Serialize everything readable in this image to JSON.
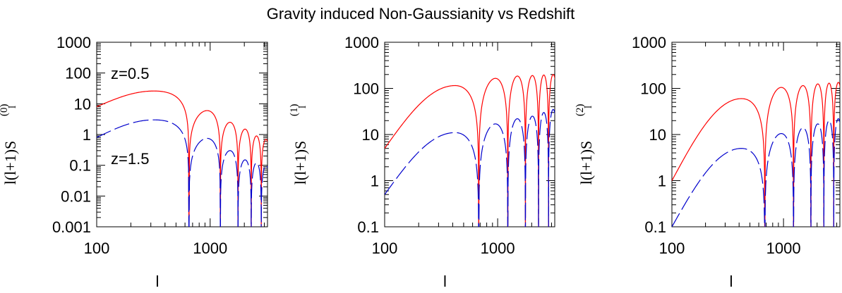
{
  "title": "Gravity induced Non-Gaussianity vs Redshift",
  "colors": {
    "z05": "#ff0000",
    "z15": "#0000cc",
    "axis": "#000000"
  },
  "chart_data": [
    {
      "type": "line",
      "xscale": "log",
      "yscale": "log",
      "xlim": [
        100,
        3200
      ],
      "ylim": [
        0.001,
        1000
      ],
      "xticks": [
        "100",
        "1000"
      ],
      "yticks": [
        "0.001",
        "0.01",
        "0.1",
        "1",
        "10",
        "100",
        "1000"
      ],
      "xlabel": "l",
      "ylabel": "l(l+1)S",
      "ylabel_sub": "l",
      "ylabel_sup": "(0)",
      "annotations": [
        "z=0.5",
        "z=1.5"
      ],
      "series": [
        {
          "color": "#ff0000",
          "dash": "solid",
          "peak_l": 320,
          "x": [
            100,
            320,
            650,
            940,
            1230,
            1500,
            1760,
            2030,
            2300,
            2560,
            2820,
            3100
          ],
          "y": [
            8,
            26,
            0.0012,
            6,
            0.001,
            2.5,
            0.001,
            1.5,
            0.001,
            0.9,
            0.001,
            0.7
          ]
        },
        {
          "color": "#0000cc",
          "dash": "long-dash",
          "peak_l": 320,
          "x": [
            100,
            320,
            650,
            940,
            1230,
            1500,
            1760,
            2030,
            2300,
            2560,
            2820,
            3100
          ],
          "y": [
            0.8,
            3,
            0.001,
            0.75,
            0.001,
            0.3,
            0.001,
            0.15,
            0.001,
            0.12,
            0.001,
            0.1
          ]
        }
      ]
    },
    {
      "type": "line",
      "xscale": "log",
      "yscale": "log",
      "xlim": [
        100,
        3200
      ],
      "ylim": [
        0.1,
        1000
      ],
      "xticks": [
        "100",
        "1000"
      ],
      "yticks": [
        "0.1",
        "1",
        "10",
        "100",
        "1000"
      ],
      "xlabel": "l",
      "ylabel": "l(l+1)S",
      "ylabel_sub": "l",
      "ylabel_sup": "(1)",
      "annotations": [],
      "series": [
        {
          "color": "#ff0000",
          "dash": "solid",
          "peak_l": 420,
          "x": [
            100,
            420,
            680,
            960,
            1230,
            1500,
            1760,
            2030,
            2300,
            2560,
            2820,
            3100
          ],
          "y": [
            5,
            115,
            0.1,
            165,
            0.1,
            185,
            0.1,
            190,
            0.1,
            195,
            0.1,
            200
          ]
        },
        {
          "color": "#0000cc",
          "dash": "long-dash",
          "peak_l": 420,
          "x": [
            100,
            420,
            680,
            960,
            1230,
            1500,
            1760,
            2030,
            2300,
            2560,
            2820,
            3100
          ],
          "y": [
            0.5,
            11,
            0.1,
            17,
            0.1,
            22,
            0.1,
            25,
            0.1,
            30,
            0.1,
            35
          ]
        }
      ]
    },
    {
      "type": "line",
      "xscale": "log",
      "yscale": "log",
      "xlim": [
        100,
        3200
      ],
      "ylim": [
        0.1,
        1000
      ],
      "xticks": [
        "100",
        "1000"
      ],
      "yticks": [
        "0.1",
        "1",
        "10",
        "100",
        "1000"
      ],
      "xlabel": "l",
      "ylabel": "l(l+1)S",
      "ylabel_sub": "l",
      "ylabel_sup": "(2)",
      "annotations": [],
      "series": [
        {
          "color": "#ff0000",
          "dash": "solid",
          "peak_l": 420,
          "x": [
            100,
            420,
            680,
            960,
            1230,
            1500,
            1760,
            2030,
            2300,
            2560,
            2820,
            3100
          ],
          "y": [
            1,
            60,
            0.1,
            105,
            0.1,
            115,
            0.1,
            125,
            0.1,
            130,
            0.1,
            135
          ]
        },
        {
          "color": "#0000cc",
          "dash": "long-dash",
          "peak_l": 420,
          "x": [
            100,
            420,
            680,
            960,
            1230,
            1500,
            1760,
            2030,
            2300,
            2560,
            2820,
            3100
          ],
          "y": [
            0.1,
            5,
            0.1,
            10.5,
            0.1,
            14,
            0.1,
            17,
            0.1,
            20,
            0.1,
            22
          ]
        }
      ]
    }
  ]
}
